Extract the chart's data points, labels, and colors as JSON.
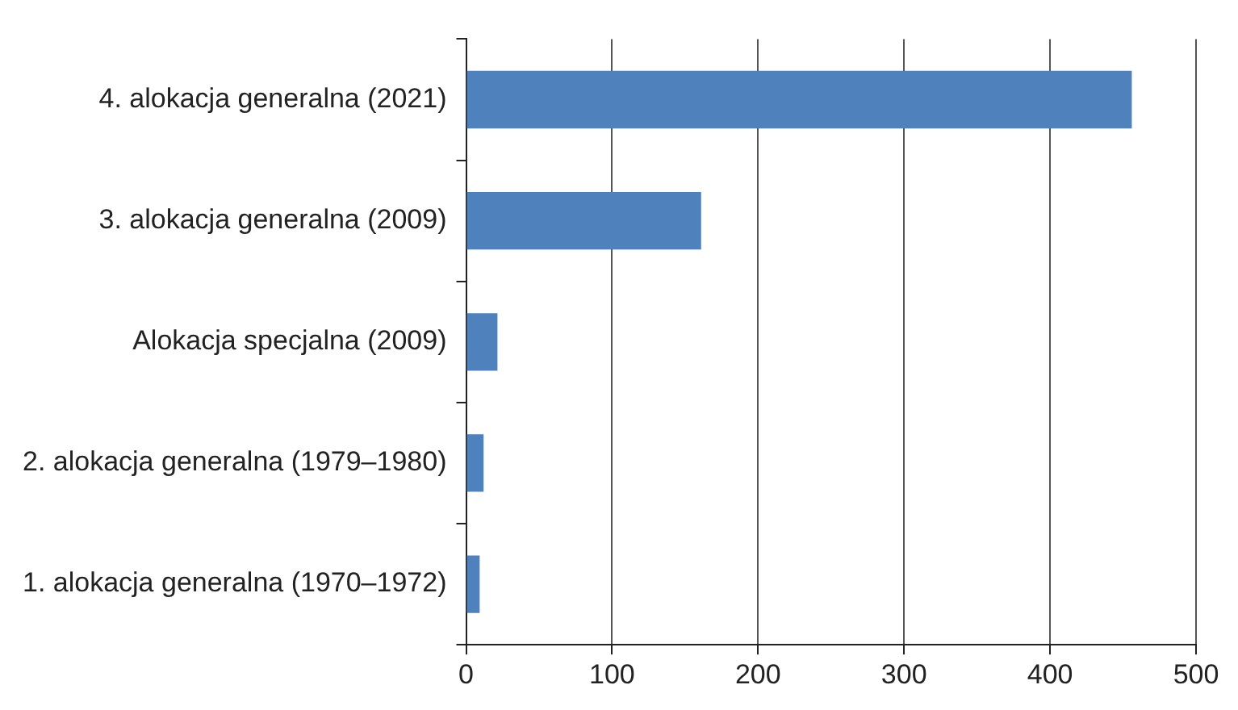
{
  "chart_data": {
    "type": "bar",
    "orientation": "horizontal",
    "categories": [
      "4. alokacja generalna (2021)",
      "3. alokacja generalna (2009)",
      "Alokacja specjalna (2009)",
      "2. alokacja generalna (1979–1980)",
      "1. alokacja generalna (1970–1972)"
    ],
    "values": [
      456,
      161,
      21.5,
      12,
      9.3
    ],
    "color": "#4f81bd",
    "xlim": [
      0,
      500
    ],
    "xticks": [
      0,
      100,
      200,
      300,
      400,
      500
    ],
    "grid": "x",
    "legend": false
  }
}
